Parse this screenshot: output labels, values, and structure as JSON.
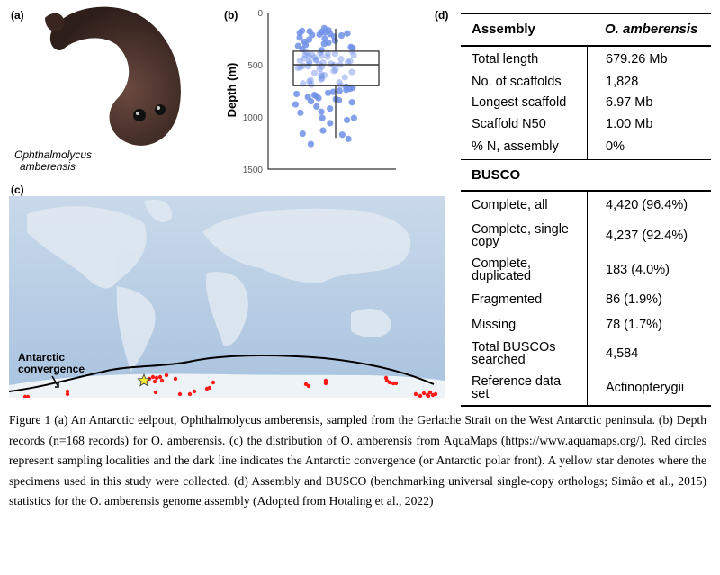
{
  "panel_labels": {
    "a": "(a)",
    "b": "(b)",
    "c": "(c)",
    "d": "(d)"
  },
  "photo": {
    "caption_line1": "Ophthalmolycus",
    "caption_line2": "amberensis"
  },
  "chart_data": {
    "type": "boxplot",
    "ylabel": "Depth (m)",
    "ylim": [
      0,
      1500
    ],
    "y_inverted": true,
    "yticks": [
      "0",
      "500",
      "1000",
      "1500"
    ],
    "box": {
      "q1": 370,
      "median": 500,
      "q3": 700,
      "whisker_low": 155,
      "whisker_high": 1200
    },
    "point_color": "#6f8fe8",
    "points_depth_m": [
      150,
      170,
      175,
      180,
      185,
      190,
      195,
      200,
      205,
      210,
      215,
      220,
      230,
      240,
      250,
      260,
      270,
      280,
      290,
      300,
      310,
      320,
      330,
      340,
      350,
      360,
      370,
      380,
      385,
      390,
      395,
      400,
      405,
      410,
      415,
      420,
      425,
      430,
      440,
      445,
      450,
      455,
      460,
      465,
      470,
      475,
      480,
      485,
      490,
      495,
      500,
      505,
      510,
      515,
      520,
      525,
      530,
      540,
      550,
      560,
      570,
      580,
      590,
      600,
      610,
      620,
      630,
      640,
      650,
      660,
      670,
      680,
      690,
      700,
      710,
      720,
      730,
      740,
      750,
      760,
      770,
      780,
      790,
      800,
      810,
      820,
      830,
      840,
      850,
      860,
      880,
      900,
      920,
      950,
      960,
      1010,
      1010,
      1030,
      1060,
      1130,
      1160,
      1170,
      1210,
      1260
    ]
  },
  "map": {
    "annotation_line1": "Antarctic",
    "annotation_line2": "convergence",
    "record_color": "#ff1a1a",
    "star_color": "#ffee33"
  },
  "table": {
    "assembly_header": "Assembly",
    "species_header": "O. amberensis",
    "assembly_rows": [
      {
        "label": "Total length",
        "value": "679.26 Mb"
      },
      {
        "label": "No. of scaffolds",
        "value": "1,828"
      },
      {
        "label": "Longest scaffold",
        "value": "6.97 Mb"
      },
      {
        "label": "Scaffold N50",
        "value": "1.00 Mb"
      },
      {
        "label": "% N, assembly",
        "value": "0%"
      }
    ],
    "busco_header": "BUSCO",
    "busco_rows": [
      {
        "label": "Complete, all",
        "value": "4,420 (96.4%)"
      },
      {
        "label": "Complete, single copy",
        "value": "4,237 (92.4%)"
      },
      {
        "label": "Complete, duplicated",
        "value": "183 (4.0%)"
      },
      {
        "label": "Fragmented",
        "value": "86 (1.9%)"
      },
      {
        "label": "Missing",
        "value": "78 (1.7%)"
      },
      {
        "label": "Total BUSCOs searched",
        "value": "4,584"
      },
      {
        "label": "Reference data set",
        "value": "Actinopterygii"
      }
    ]
  },
  "caption": {
    "text": "Figure 1 (a) An Antarctic eelpout, Ophthalmolycus amberensis, sampled from the Gerlache Strait on the West Antarctic peninsula. (b) Depth records (n=168 records) for O. amberensis. (c) the distribution of O. amberensis from AquaMaps (https://www.aquamaps.org/). Red circles represent sampling localities and the dark line indicates the Antarctic convergence (or Antarctic polar front). A yellow star denotes where the specimens used in this study were collected. (d) Assembly and BUSCO (benchmarking universal single-copy orthologs; Simão et al., 2015) statistics for the O. amberensis genome assembly (Adopted from Hotaling et al., 2022)"
  }
}
